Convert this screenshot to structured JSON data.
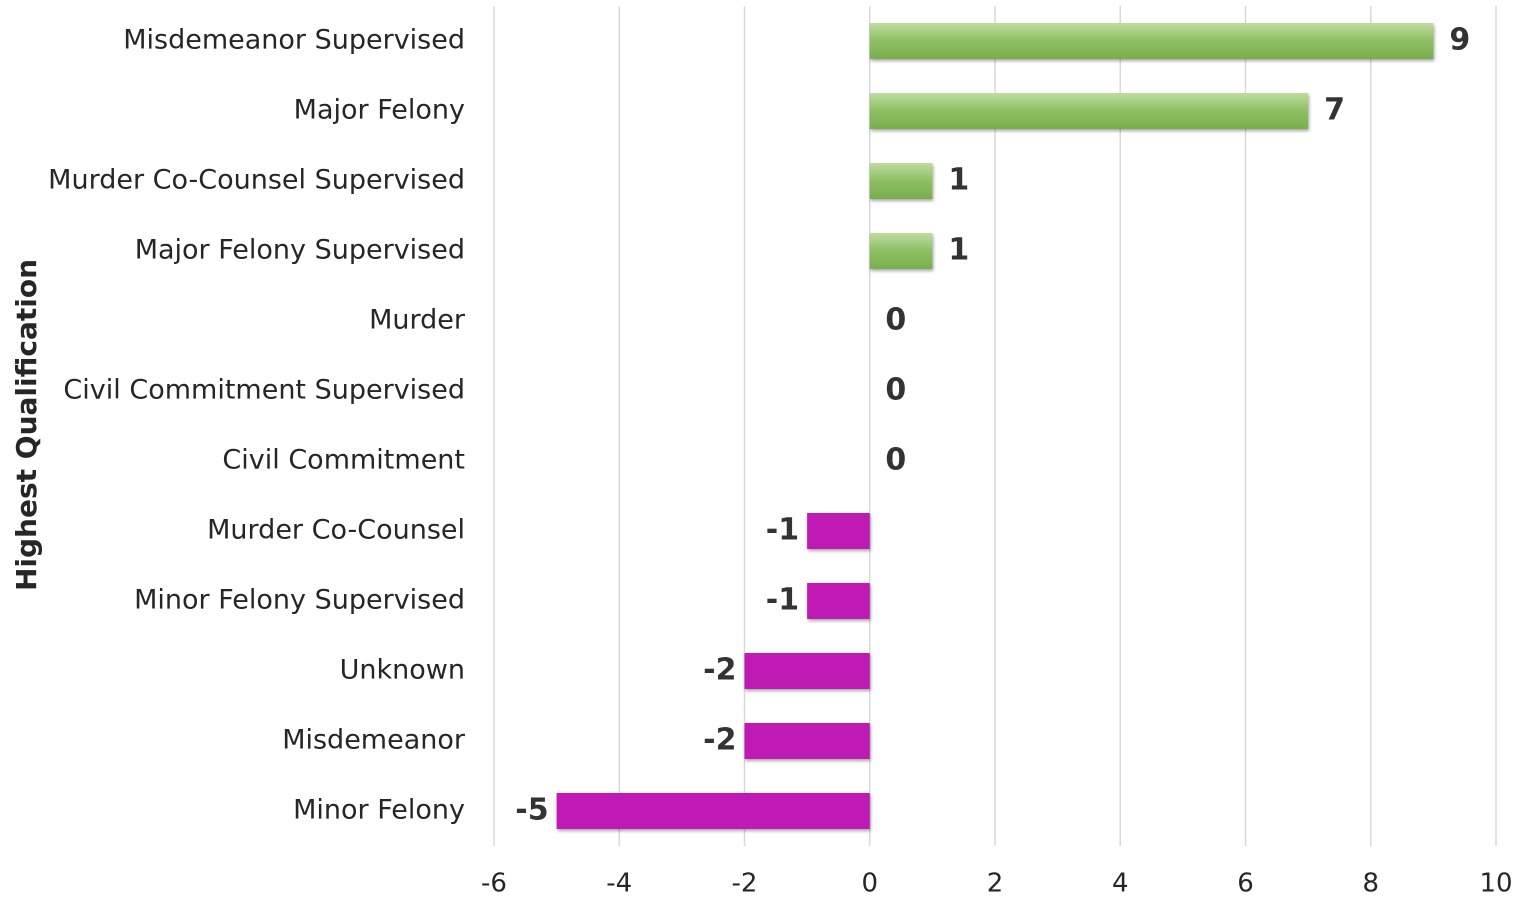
{
  "chart_data": {
    "type": "hbar",
    "y_axis_label": "Highest Qualification",
    "categories": [
      "Misdemeanor Supervised",
      "Major Felony",
      "Murder Co-Counsel Supervised",
      "Major Felony Supervised",
      "Murder",
      "Civil Commitment Supervised",
      "Civil Commitment",
      "Murder Co-Counsel",
      "Minor Felony Supervised",
      "Unknown",
      "Misdemeanor",
      "Minor Felony"
    ],
    "values": [
      9,
      7,
      1,
      1,
      0,
      0,
      0,
      -1,
      -1,
      -2,
      -2,
      -5
    ],
    "positive_color": "#8dbf63",
    "negative_color": "#c01ab5",
    "xlim": [
      -6,
      10
    ],
    "xticks": [
      -6,
      -4,
      -2,
      0,
      2,
      4,
      6,
      8,
      10
    ],
    "grid": true
  }
}
